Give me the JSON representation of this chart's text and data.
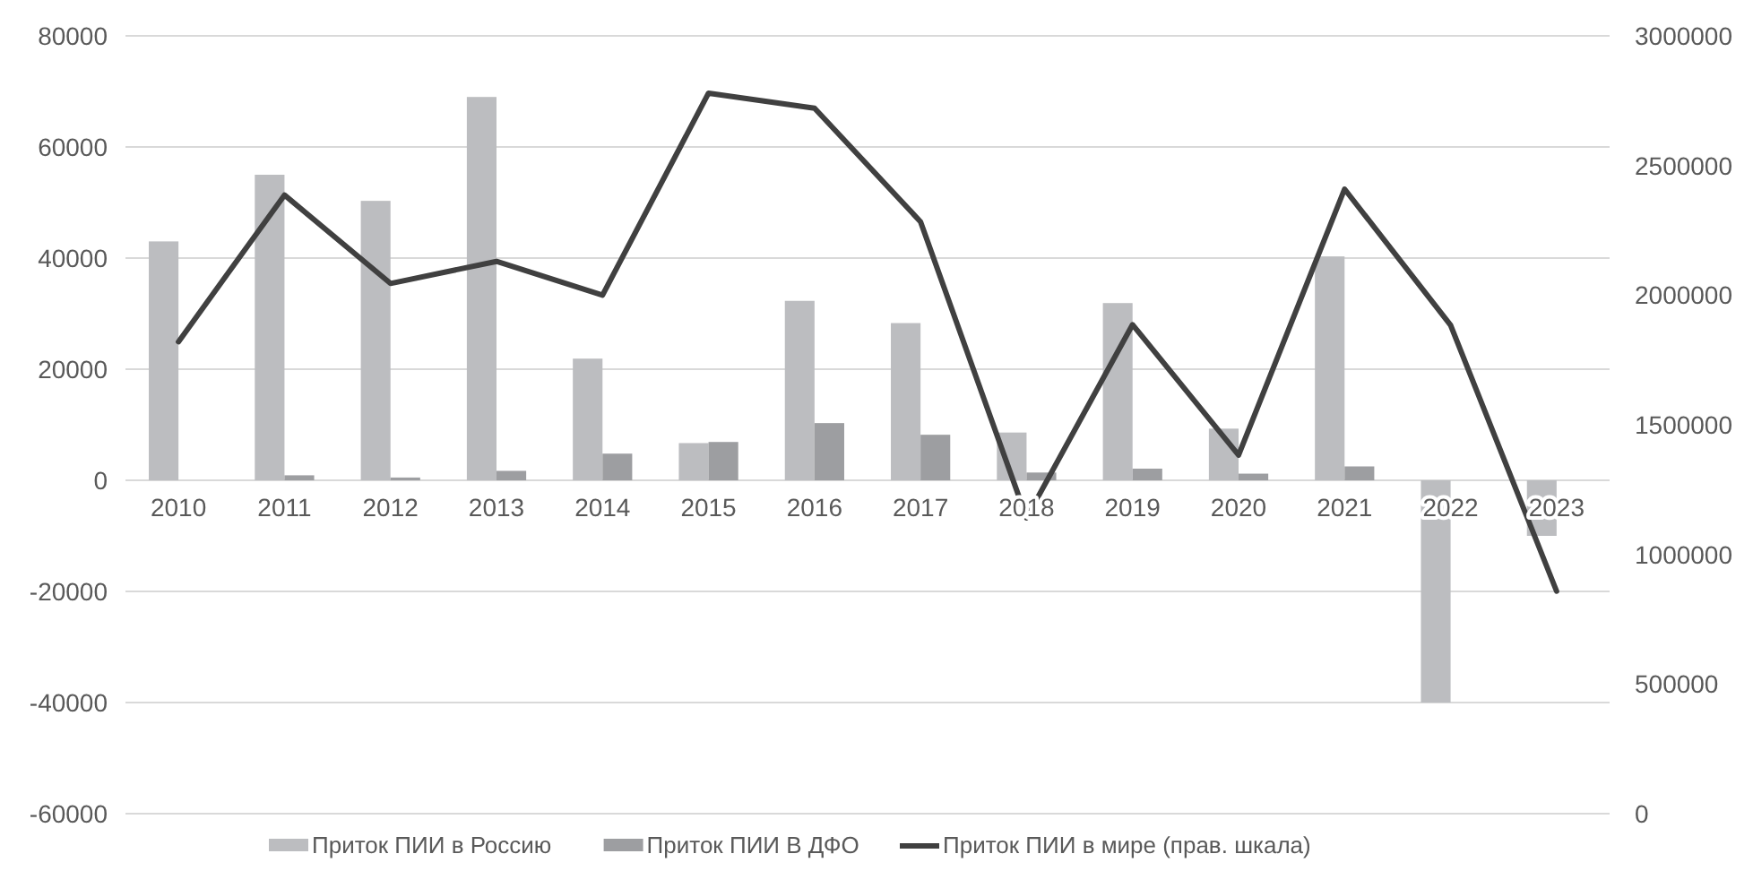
{
  "chart_data": {
    "type": "bar",
    "categories": [
      "2010",
      "2011",
      "2012",
      "2013",
      "2014",
      "2015",
      "2016",
      "2017",
      "2018",
      "2019",
      "2020",
      "2021",
      "2022",
      "2023"
    ],
    "series": [
      {
        "name": "Приток ПИИ в Россию",
        "color": "#bcbdc0",
        "values": [
          43000,
          55000,
          50300,
          69000,
          21900,
          6700,
          32300,
          28300,
          8600,
          31900,
          9300,
          40300,
          -40000,
          -10000
        ]
      },
      {
        "name": "Приток ПИИ В ДФО",
        "color": "#9d9ea1",
        "values": [
          null,
          900,
          500,
          1700,
          4800,
          6900,
          10300,
          8200,
          1400,
          2100,
          1200,
          2500,
          null,
          null
        ]
      },
      {
        "name": "Приток ПИИ в мире (прав. шкала)",
        "type": "line",
        "axis": "y2",
        "color": "#404040",
        "values": [
          1820000,
          2386000,
          2045000,
          2130000,
          2000000,
          2779000,
          2721000,
          2283000,
          1141000,
          1886000,
          1383000,
          2409000,
          1884000,
          858000
        ]
      }
    ],
    "ylim": [
      -60000,
      80000
    ],
    "yticks": [
      -60000,
      -40000,
      -20000,
      0,
      20000,
      40000,
      60000,
      80000
    ],
    "y2lim": [
      0,
      3000000
    ],
    "y2ticks": [
      0,
      500000,
      1000000,
      1500000,
      2000000,
      2500000,
      3000000
    ],
    "grid": "y",
    "legend": "bottom",
    "marker": "none",
    "line_style": "solid"
  }
}
